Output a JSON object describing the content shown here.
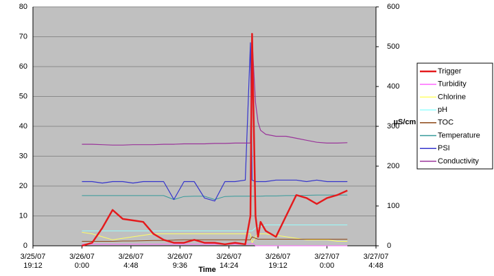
{
  "chart_data": {
    "type": "line",
    "x_label": "Time",
    "y2_label": "µS/cm",
    "xlim": [
      "3/25/07 19:12",
      "3/27/07 4:48"
    ],
    "xticks": [
      "3/25/07 19:12",
      "3/26/07 0:00",
      "3/26/07 4:48",
      "3/26/07 9:36",
      "3/26/07 14:24",
      "3/26/07 19:12",
      "3/27/07 0:00",
      "3/27/07 4:48"
    ],
    "ylim": [
      0,
      80
    ],
    "yticks": [
      0,
      10,
      20,
      30,
      40,
      50,
      60,
      70,
      80
    ],
    "y2lim": [
      0,
      600
    ],
    "y2ticks": [
      0,
      100,
      200,
      300,
      400,
      500,
      600
    ],
    "grid": true,
    "legend": "right",
    "x": [
      "3/26/07 0:00",
      "3/26/07 1:00",
      "3/26/07 2:00",
      "3/26/07 3:00",
      "3/26/07 4:00",
      "3/26/07 5:00",
      "3/26/07 6:00",
      "3/26/07 7:00",
      "3/26/07 8:00",
      "3/26/07 9:00",
      "3/26/07 10:00",
      "3/26/07 11:00",
      "3/26/07 12:00",
      "3/26/07 13:00",
      "3/26/07 14:00",
      "3/26/07 15:00",
      "3/26/07 16:00",
      "3/26/07 16:30",
      "3/26/07 16:40",
      "3/26/07 17:00",
      "3/26/07 17:15",
      "3/26/07 17:30",
      "3/26/07 18:00",
      "3/26/07 19:00",
      "3/26/07 20:00",
      "3/26/07 21:00",
      "3/26/07 22:00",
      "3/26/07 23:00",
      "3/27/07 0:00",
      "3/27/07 1:00",
      "3/27/07 2:00"
    ],
    "series": [
      {
        "name": "Trigger",
        "color": "#e41a1c",
        "width": 2.5,
        "values": [
          0,
          1,
          6,
          12,
          9,
          8.5,
          8,
          4,
          2,
          1,
          1,
          2,
          1,
          1,
          0.5,
          1,
          0.5,
          10,
          71,
          10,
          3,
          8,
          5,
          3,
          10,
          17,
          16,
          14,
          16,
          17,
          18.5
        ]
      },
      {
        "name": "Turbidity",
        "color": "#ff66ff",
        "width": 1,
        "values": [
          0.5,
          0.5,
          0.5,
          0.5,
          0.5,
          0.5,
          0.5,
          0.5,
          0.5,
          0.5,
          0.5,
          0.5,
          0.5,
          0.5,
          0.5,
          0.5,
          0.5,
          0.5,
          1,
          0,
          0,
          0,
          0,
          0,
          0,
          0,
          0,
          0,
          0,
          0,
          0
        ]
      },
      {
        "name": "Chlorine",
        "color": "#ffff66",
        "width": 1,
        "values": [
          4.5,
          4,
          3,
          2,
          2.5,
          3,
          3.5,
          4,
          4,
          4,
          4,
          4,
          4,
          4,
          4,
          4,
          4,
          4,
          1,
          3,
          4,
          4,
          4,
          3.5,
          3,
          2.5,
          2,
          2,
          2,
          1.5,
          1.5
        ]
      },
      {
        "name": "pH",
        "color": "#99ffff",
        "width": 1,
        "values": [
          5,
          5,
          5,
          5,
          5,
          5,
          5,
          5,
          5,
          5,
          5,
          5,
          5,
          5,
          5,
          5,
          5,
          5,
          5,
          6,
          6.5,
          6.5,
          7,
          7,
          7,
          7,
          7,
          7,
          7,
          7,
          7
        ]
      },
      {
        "name": "TOC",
        "color": "#8b4513",
        "width": 1,
        "values": [
          1.5,
          1.5,
          1.5,
          1.5,
          1.6,
          1.6,
          1.7,
          1.8,
          1.8,
          1.9,
          2,
          2,
          2,
          2,
          2,
          2,
          2,
          2,
          3,
          2.5,
          2.2,
          2.2,
          2.2,
          2.2,
          2.2,
          2.2,
          2.2,
          2.2,
          2.2,
          2.2,
          2.2
        ]
      },
      {
        "name": "Temperature",
        "color": "#339999",
        "width": 1,
        "values": [
          16.8,
          16.8,
          16.8,
          16.8,
          16.8,
          16.8,
          16.8,
          16.8,
          16.8,
          15.5,
          16.5,
          16.6,
          16.6,
          15.5,
          16.5,
          16.6,
          16.6,
          16.6,
          16.6,
          16.6,
          16.6,
          16.6,
          16.7,
          16.7,
          16.8,
          16.8,
          16.9,
          17,
          17,
          17,
          17
        ]
      },
      {
        "name": "PSI",
        "color": "#3333cc",
        "width": 1.2,
        "values": [
          21.5,
          21.5,
          21,
          21.5,
          21.5,
          21,
          21.5,
          21.5,
          21.5,
          15.5,
          21.5,
          21.5,
          16,
          15,
          21.5,
          21.5,
          22,
          68,
          22,
          21.5,
          21.5,
          21.5,
          21.5,
          22,
          22,
          22,
          21.5,
          22,
          21.5,
          21.5,
          21.5
        ]
      },
      {
        "name": "Conductivity",
        "color": "#993399",
        "width": 1.2,
        "axis": "y2",
        "values": [
          255,
          255,
          254,
          253,
          253,
          254,
          254,
          254,
          255,
          255,
          256,
          256,
          256,
          257,
          257,
          258,
          258,
          258,
          520,
          360,
          310,
          290,
          280,
          275,
          275,
          270,
          265,
          260,
          258,
          258,
          259
        ]
      }
    ]
  }
}
